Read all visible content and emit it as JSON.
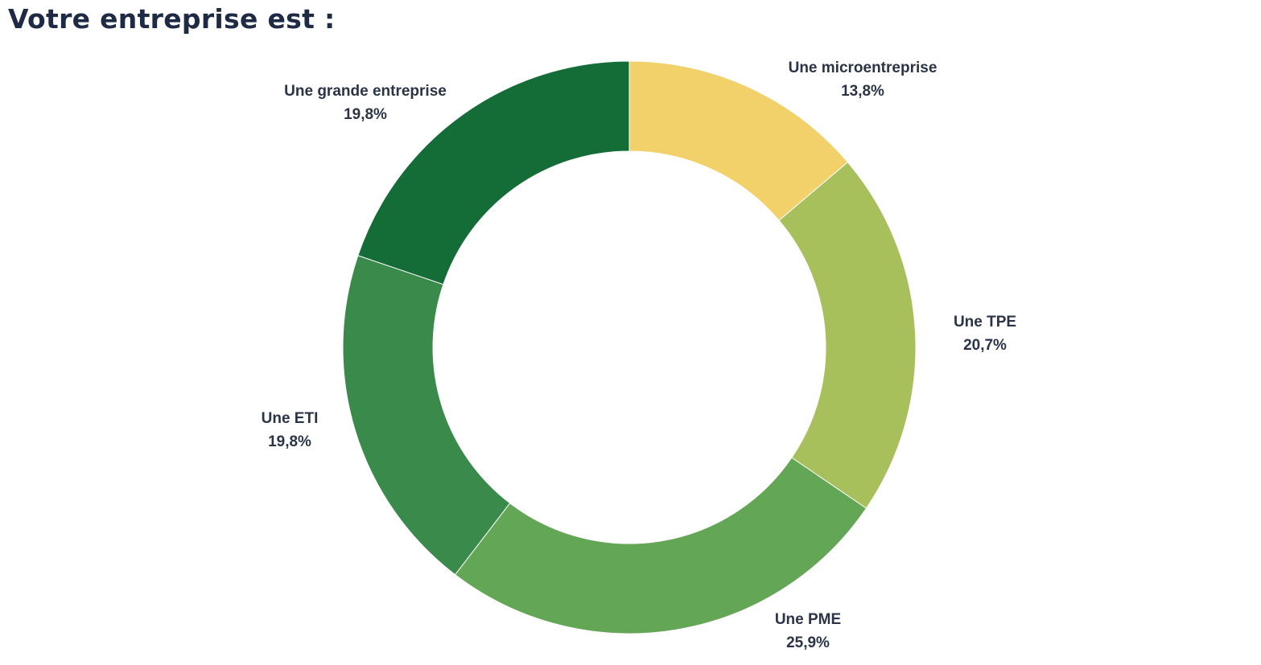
{
  "chart_data": {
    "type": "pie",
    "variant": "donut",
    "title": "Votre entreprise est :",
    "legend": "none",
    "start": "top",
    "direction": "clockwise",
    "slices": [
      {
        "name": "Une microentreprise",
        "value": 13.8,
        "value_label": "13,8%",
        "color": "#f2d06a"
      },
      {
        "name": "Une TPE",
        "value": 20.7,
        "value_label": "20,7%",
        "color": "#a8c05c"
      },
      {
        "name": "Une PME",
        "value": 25.9,
        "value_label": "25,9%",
        "color": "#63a656"
      },
      {
        "name": "Une ETI",
        "value": 19.8,
        "value_label": "19,8%",
        "color": "#3a8a4c"
      },
      {
        "name": "Une grande entreprise",
        "value": 19.8,
        "value_label": "19,8%",
        "color": "#146c37"
      }
    ]
  }
}
